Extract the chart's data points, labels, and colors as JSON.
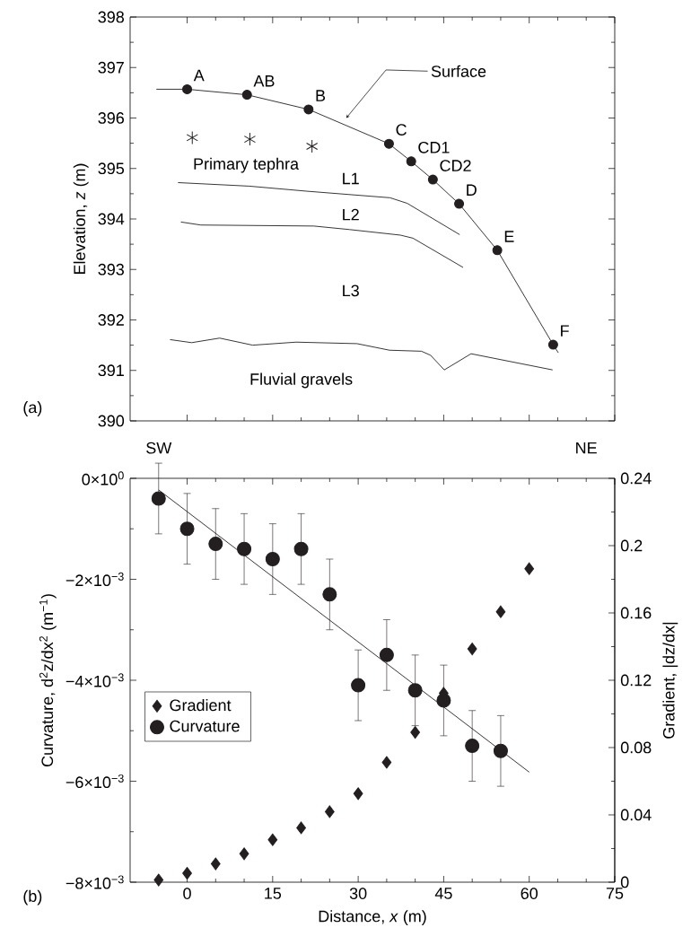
{
  "chart_data": [
    {
      "type": "line",
      "xlim": [
        -10,
        75
      ],
      "ylim": [
        390,
        398
      ],
      "xticks": [
        0,
        15,
        30,
        45,
        60,
        75
      ],
      "yticks": [
        390,
        391,
        392,
        393,
        394,
        395,
        396,
        397,
        398
      ],
      "tick_labels": "y",
      "ylabel": "Elevation, *z* (m)",
      "annotations": [
        "(a)",
        "SW",
        "NE",
        "Primary tephra",
        "L1",
        "L2",
        "L3",
        "Fluvial gravels",
        "Surface",
        {
          "text": "A",
          "x": 0,
          "y": 396.57
        },
        {
          "text": "AB",
          "x": 10.5,
          "y": 396.46
        },
        {
          "text": "B",
          "x": 21.3,
          "y": 396.17
        },
        {
          "text": "C",
          "x": 35.4,
          "y": 395.49
        },
        {
          "text": "CD1",
          "x": 39.3,
          "y": 395.14
        },
        {
          "text": "CD2",
          "x": 43.1,
          "y": 394.78
        },
        {
          "text": "D",
          "x": 47.7,
          "y": 394.3
        },
        {
          "text": "E",
          "x": 54.4,
          "y": 393.38
        },
        {
          "text": "F",
          "x": 64.2,
          "y": 391.51
        }
      ],
      "series": [
        {
          "type": "line",
          "marker": "none",
          "color": "#231f20",
          "x": [
            -5.4,
            0,
            10.5,
            21.3,
            35.4,
            39.3,
            43.1,
            47.7,
            54.4,
            64.2,
            65.1
          ],
          "values": [
            396.57,
            396.57,
            396.46,
            396.17,
            395.49,
            395.14,
            394.78,
            394.3,
            393.38,
            391.51,
            391.35
          ]
        },
        {
          "type": "scatter",
          "marker": "circle",
          "color": "#231f20",
          "x": [
            0,
            10.5,
            21.3,
            35.4,
            39.3,
            43.1,
            47.7,
            54.4,
            64.2
          ],
          "values": [
            396.57,
            396.46,
            396.17,
            395.49,
            395.14,
            394.78,
            394.3,
            393.38,
            391.51
          ]
        },
        {
          "type": "scatter",
          "marker": "cross",
          "color": "#231f20",
          "x": [
            0.9,
            11.0,
            21.9
          ],
          "values": [
            395.61,
            395.58,
            395.44
          ]
        },
        {
          "type": "line",
          "marker": "none",
          "color": "#231f20",
          "x": [
            -1.6,
            10.9,
            21.0,
            35.6,
            38.6,
            47.8
          ],
          "values": [
            394.72,
            394.65,
            394.55,
            394.42,
            394.31,
            393.69
          ]
        },
        {
          "type": "line",
          "marker": "none",
          "color": "#231f20",
          "x": [
            -1.1,
            2.4,
            22.2,
            28.5,
            37.4,
            39.6,
            48.4
          ],
          "values": [
            393.94,
            393.88,
            393.86,
            393.79,
            393.68,
            393.62,
            393.04
          ]
        },
        {
          "type": "line",
          "marker": "none",
          "color": "#231f20",
          "x": [
            -3.0,
            0.8,
            5.7,
            11.5,
            19.1,
            29.8,
            35.5,
            41.1,
            42.7,
            45.1,
            49.8,
            64.1
          ],
          "values": [
            391.61,
            391.55,
            391.64,
            391.5,
            391.56,
            391.53,
            391.4,
            391.38,
            391.3,
            391.01,
            391.33,
            391.01
          ]
        }
      ]
    },
    {
      "type": "scatter",
      "xlim": [
        -10,
        75
      ],
      "xticks": [
        0,
        15,
        30,
        45,
        60,
        75
      ],
      "ylim": [
        -0.008,
        0
      ],
      "yticks": [
        {
          "value": -0.008,
          "label": "−8×10$^{−3}$"
        },
        {
          "value": -0.006,
          "label": "−6×10$^{−3}$"
        },
        {
          "value": -0.004,
          "label": "−4×10$^{−3}$"
        },
        {
          "value": -0.002,
          "label": "−2×10$^{−3}$"
        },
        {
          "value": 0,
          "label": "0×10$^{0}$"
        }
      ],
      "y2lim": [
        0,
        0.24
      ],
      "y2ticks": [
        0,
        0.04,
        0.08,
        0.12,
        0.16,
        0.2,
        0.24
      ],
      "xlabel": "Distance, *x* (m)",
      "ylabel": "Curvature, d$^{2}$z/dx$^{2}$ (m$^{−1}$)",
      "y2label": "Gradient, |dz/dx|",
      "legend": "left",
      "annotations": [
        "(b)"
      ],
      "series": [
        {
          "name": "Gradient",
          "axis": "y2",
          "marker": "diamond",
          "color": "#231f20",
          "x": [
            -5,
            0,
            5,
            10,
            15,
            20,
            25,
            30,
            35,
            40,
            45,
            50,
            55,
            60
          ],
          "values": [
            0.0013,
            0.0053,
            0.0109,
            0.0169,
            0.0252,
            0.0323,
            0.0419,
            0.0526,
            0.0712,
            0.089,
            0.1123,
            0.1386,
            0.1607,
            0.1863
          ]
        },
        {
          "name": "Curvature",
          "marker": "circle",
          "color": "#231f20",
          "x": [
            -5,
            0,
            5,
            10,
            15,
            20,
            25,
            30,
            35,
            40,
            45,
            50,
            55
          ],
          "values": [
            -0.0004,
            -0.001,
            -0.0013,
            -0.0014,
            -0.0016,
            -0.0014,
            -0.0023,
            -0.0041,
            -0.0035,
            -0.0042,
            -0.0044,
            -0.0053,
            -0.0054
          ],
          "errors": [
            0.0007,
            0.0007,
            0.0007,
            0.0007,
            0.0007,
            0.0007,
            0.0007,
            0.0007,
            0.0007,
            0.0007,
            0.0007,
            0.0007,
            0.0007
          ]
        },
        {
          "type": "line",
          "marker": "none",
          "color": "#231f20",
          "x": [
            -5,
            60
          ],
          "values": [
            -0.00023,
            -0.00582
          ]
        }
      ]
    }
  ]
}
